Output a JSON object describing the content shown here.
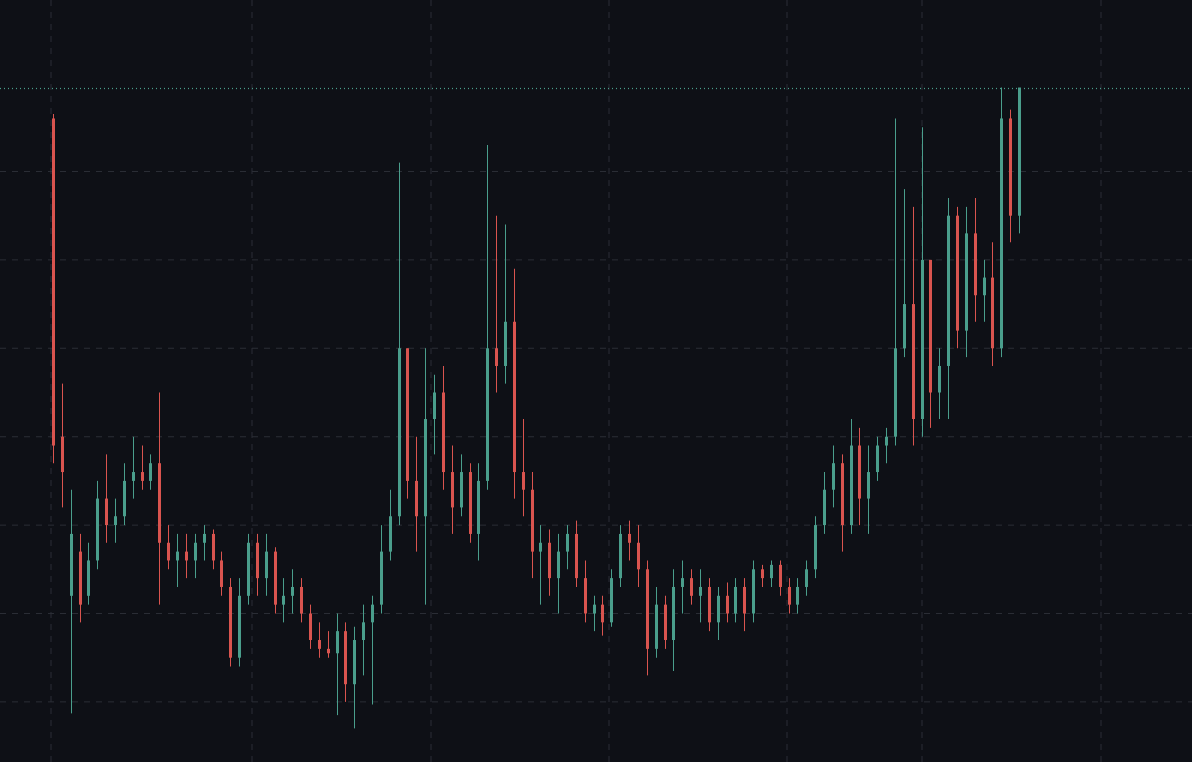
{
  "chart_data": {
    "type": "candlestick",
    "ohlc": [
      [
        7.6,
        7.65,
        3.7,
        3.9
      ],
      [
        4.0,
        4.6,
        3.2,
        3.6
      ],
      [
        2.2,
        3.4,
        0.87,
        2.9
      ],
      [
        2.7,
        2.9,
        1.9,
        2.1
      ],
      [
        2.2,
        2.8,
        2.1,
        2.6
      ],
      [
        2.6,
        3.5,
        2.5,
        3.3
      ],
      [
        3.3,
        3.8,
        2.8,
        3.0
      ],
      [
        3.0,
        3.3,
        2.8,
        3.1
      ],
      [
        3.1,
        3.7,
        3.0,
        3.5
      ],
      [
        3.5,
        4.0,
        3.3,
        3.6
      ],
      [
        3.6,
        3.9,
        3.4,
        3.5
      ],
      [
        3.5,
        3.8,
        3.4,
        3.7
      ],
      [
        3.7,
        4.5,
        2.1,
        2.8
      ],
      [
        2.8,
        3.0,
        2.5,
        2.6
      ],
      [
        2.6,
        2.9,
        2.3,
        2.7
      ],
      [
        2.7,
        2.9,
        2.4,
        2.6
      ],
      [
        2.6,
        2.9,
        2.4,
        2.8
      ],
      [
        2.8,
        3.0,
        2.6,
        2.9
      ],
      [
        2.9,
        2.95,
        2.5,
        2.6
      ],
      [
        2.6,
        2.7,
        2.2,
        2.3
      ],
      [
        2.3,
        2.4,
        1.4,
        1.5
      ],
      [
        1.5,
        2.4,
        1.4,
        2.2
      ],
      [
        2.2,
        2.9,
        2.1,
        2.8
      ],
      [
        2.8,
        2.9,
        2.2,
        2.4
      ],
      [
        2.4,
        2.9,
        2.2,
        2.7
      ],
      [
        2.7,
        2.75,
        2.0,
        2.1
      ],
      [
        2.1,
        2.4,
        1.9,
        2.2
      ],
      [
        2.2,
        2.5,
        2.0,
        2.3
      ],
      [
        2.3,
        2.4,
        1.9,
        2.0
      ],
      [
        2.0,
        2.1,
        1.6,
        1.7
      ],
      [
        1.7,
        1.9,
        1.5,
        1.6
      ],
      [
        1.6,
        1.8,
        1.5,
        1.55
      ],
      [
        1.55,
        2.0,
        0.85,
        1.8
      ],
      [
        1.8,
        1.9,
        1.0,
        1.2
      ],
      [
        1.2,
        1.85,
        0.7,
        1.7
      ],
      [
        1.7,
        2.1,
        1.3,
        1.9
      ],
      [
        1.9,
        2.2,
        0.97,
        2.1
      ],
      [
        2.1,
        3.0,
        2.0,
        2.7
      ],
      [
        2.7,
        3.4,
        2.6,
        3.1
      ],
      [
        3.1,
        7.1,
        3.0,
        5.0
      ],
      [
        5.0,
        5.0,
        3.3,
        3.5
      ],
      [
        3.5,
        4.0,
        2.7,
        3.1
      ],
      [
        3.1,
        5.0,
        2.1,
        4.2
      ],
      [
        4.2,
        4.7,
        3.8,
        4.5
      ],
      [
        4.5,
        4.8,
        3.4,
        3.6
      ],
      [
        3.6,
        3.9,
        2.9,
        3.2
      ],
      [
        3.2,
        3.8,
        3.1,
        3.6
      ],
      [
        3.6,
        3.7,
        2.8,
        2.9
      ],
      [
        2.9,
        3.7,
        2.6,
        3.5
      ],
      [
        3.5,
        7.3,
        3.4,
        5.0
      ],
      [
        5.0,
        6.5,
        4.5,
        4.8
      ],
      [
        4.8,
        6.4,
        4.6,
        5.3
      ],
      [
        5.3,
        5.9,
        3.3,
        3.6
      ],
      [
        3.6,
        4.2,
        3.1,
        3.4
      ],
      [
        3.4,
        3.6,
        2.4,
        2.7
      ],
      [
        2.7,
        3.0,
        2.1,
        2.8
      ],
      [
        2.8,
        2.95,
        2.2,
        2.4
      ],
      [
        2.4,
        2.9,
        2.0,
        2.7
      ],
      [
        2.7,
        3.0,
        2.5,
        2.9
      ],
      [
        2.9,
        3.05,
        2.3,
        2.4
      ],
      [
        2.4,
        2.6,
        1.9,
        2.0
      ],
      [
        2.0,
        2.2,
        1.8,
        2.1
      ],
      [
        2.1,
        2.2,
        1.75,
        1.9
      ],
      [
        1.9,
        2.5,
        1.85,
        2.4
      ],
      [
        2.4,
        3.0,
        2.3,
        2.9
      ],
      [
        2.9,
        3.05,
        2.6,
        2.8
      ],
      [
        2.8,
        3.0,
        2.3,
        2.5
      ],
      [
        2.5,
        2.6,
        1.3,
        1.6
      ],
      [
        1.6,
        2.3,
        1.5,
        2.1
      ],
      [
        2.1,
        2.2,
        1.6,
        1.7
      ],
      [
        1.7,
        2.5,
        1.35,
        2.3
      ],
      [
        2.3,
        2.6,
        2.0,
        2.4
      ],
      [
        2.4,
        2.5,
        2.1,
        2.2
      ],
      [
        2.2,
        2.5,
        1.9,
        2.3
      ],
      [
        2.3,
        2.4,
        1.8,
        1.9
      ],
      [
        1.9,
        2.3,
        1.7,
        2.2
      ],
      [
        2.2,
        2.35,
        1.9,
        2.0
      ],
      [
        2.0,
        2.4,
        1.9,
        2.3
      ],
      [
        2.3,
        2.4,
        1.8,
        2.0
      ],
      [
        2.0,
        2.6,
        1.9,
        2.5
      ],
      [
        2.5,
        2.55,
        2.3,
        2.4
      ],
      [
        2.4,
        2.6,
        2.3,
        2.55
      ],
      [
        2.55,
        2.6,
        2.2,
        2.3
      ],
      [
        2.3,
        2.4,
        2.0,
        2.1
      ],
      [
        2.1,
        2.4,
        2.0,
        2.3
      ],
      [
        2.3,
        2.6,
        2.2,
        2.5
      ],
      [
        2.5,
        3.1,
        2.4,
        3.0
      ],
      [
        3.0,
        3.6,
        2.9,
        3.4
      ],
      [
        3.4,
        3.9,
        3.2,
        3.7
      ],
      [
        3.7,
        3.8,
        2.7,
        3.0
      ],
      [
        3.0,
        4.2,
        2.9,
        3.9
      ],
      [
        3.9,
        4.1,
        3.0,
        3.3
      ],
      [
        3.3,
        3.9,
        2.9,
        3.6
      ],
      [
        3.6,
        4.0,
        3.5,
        3.9
      ],
      [
        3.9,
        4.1,
        3.7,
        4.0
      ],
      [
        4.0,
        7.6,
        3.9,
        5.0
      ],
      [
        5.0,
        6.8,
        4.9,
        5.5
      ],
      [
        5.5,
        6.6,
        3.9,
        4.2
      ],
      [
        4.2,
        7.5,
        4.0,
        6.0
      ],
      [
        6.0,
        6.0,
        4.1,
        4.5
      ],
      [
        4.5,
        5.0,
        4.2,
        4.8
      ],
      [
        4.8,
        6.7,
        4.2,
        6.5
      ],
      [
        6.5,
        6.6,
        5.0,
        5.2
      ],
      [
        5.2,
        6.6,
        4.9,
        6.3
      ],
      [
        6.3,
        6.7,
        5.3,
        5.6
      ],
      [
        5.6,
        6.0,
        5.3,
        5.8
      ],
      [
        5.8,
        6.2,
        4.8,
        5.0
      ],
      [
        5.0,
        7.95,
        4.9,
        7.6
      ],
      [
        7.6,
        7.7,
        6.2,
        6.5
      ],
      [
        6.5,
        7.95,
        6.3,
        7.95
      ]
    ],
    "up_color": "#4a9e8c",
    "down_color": "#d9544f",
    "ylim": [
      0.32,
      8.94
    ],
    "yticks": [
      1,
      2,
      3,
      4,
      5,
      6,
      7
    ],
    "grid": true,
    "last_price_line": true
  }
}
